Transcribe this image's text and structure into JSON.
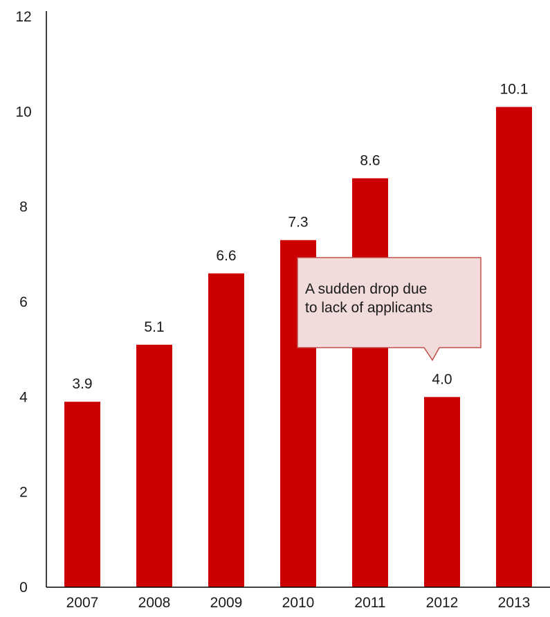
{
  "chart_data": {
    "type": "bar",
    "categories": [
      "2007",
      "2008",
      "2009",
      "2010",
      "2011",
      "2012",
      "2013"
    ],
    "values": [
      3.9,
      5.1,
      6.6,
      7.3,
      8.6,
      4.0,
      10.1
    ],
    "value_labels": [
      "3.9",
      "5.1",
      "6.6",
      "7.3",
      "8.6",
      "4.0",
      "10.1"
    ],
    "ylim": [
      0,
      12
    ],
    "yticks": [
      "0",
      "2",
      "4",
      "6",
      "8",
      "10",
      "12"
    ],
    "grid": false,
    "bar_color": "#cc0000",
    "annotation": {
      "lines": [
        "A sudden drop due",
        "to lack of applicants"
      ],
      "target_category": "2012",
      "fill": "#f2dcdb",
      "border": "#c0504d"
    }
  }
}
